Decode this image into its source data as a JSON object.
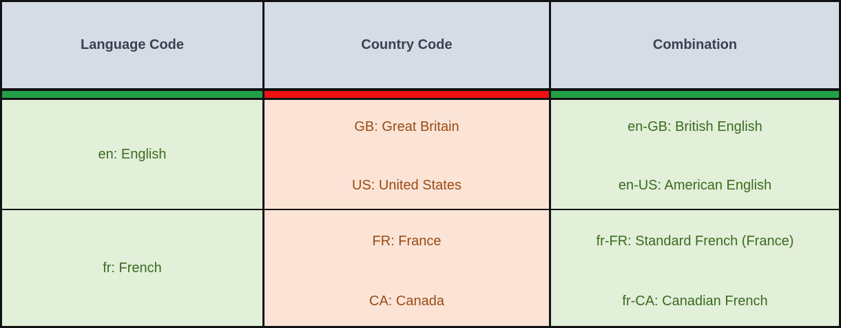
{
  "table": {
    "headers": [
      "Language Code",
      "Country Code",
      "Combination"
    ],
    "accent_colors": [
      "#22a046",
      "#ee1111",
      "#22a046"
    ],
    "rows": [
      {
        "language": "en: English",
        "countries": [
          "GB: Great Britain",
          "US: United States"
        ],
        "combinations": [
          "en-GB: British English",
          "en-US: American English"
        ]
      },
      {
        "language": "fr: French",
        "countries": [
          "FR: France",
          "CA: Canada"
        ],
        "combinations": [
          "fr-FR: Standard French (France)",
          "fr-CA: Canadian French"
        ]
      }
    ]
  }
}
